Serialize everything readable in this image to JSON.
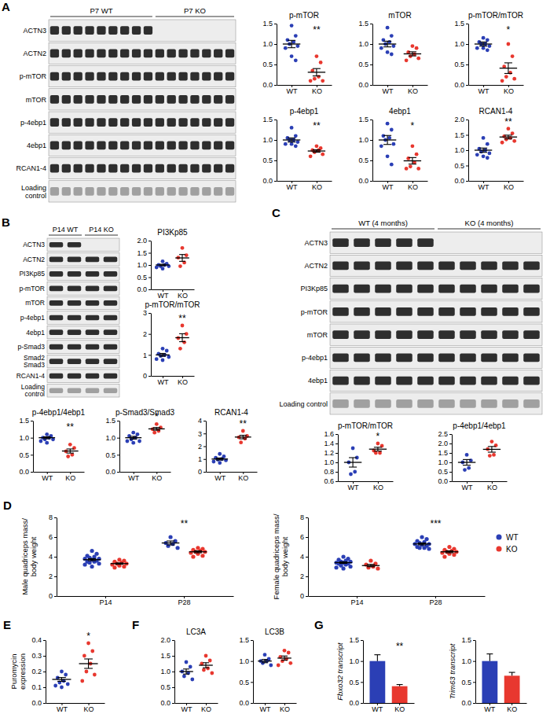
{
  "blots": [
    {
      "panel": "A",
      "headers": [
        "P7 WT",
        "P7 KO"
      ],
      "rows": [
        "ACTN3",
        "ACTN2",
        "p-mTOR",
        "mTOR",
        "p-4ebp1",
        "4ebp1",
        "RCAN1-4",
        [
          "Loading",
          "control"
        ]
      ]
    },
    {
      "panel": "B",
      "headers": [
        "P14 WT",
        "P14 KO"
      ],
      "rows": [
        "ACTN3",
        "ACTN2",
        "PI3Kp85",
        "p-mTOR",
        "mTOR",
        "p-4ebp1",
        "4ebp1",
        "p-Smad3",
        [
          "Smad2",
          "Smad3"
        ],
        "RCAN1-4",
        [
          "Loading",
          "control"
        ]
      ]
    },
    {
      "panel": "C",
      "headers": [
        "WT (4 months)",
        "KO (4 months)"
      ],
      "rows": [
        "ACTN3",
        "ACTN2",
        "PI3Kp85",
        "p-mTOR",
        "mTOR",
        "p-4ebp1",
        "4ebp1",
        "Loading control"
      ]
    }
  ],
  "chart_data": [
    {
      "type": "dot",
      "title": "p-mTOR",
      "categories": [
        "WT",
        "KO"
      ],
      "values": [
        [
          1.45,
          1.2,
          1.1,
          1.05,
          1.0,
          0.95,
          0.9,
          0.7,
          0.6
        ],
        [
          0.7,
          0.55,
          0.35,
          0.2,
          0.15,
          0.1,
          0.1
        ]
      ],
      "mean": [
        1.0,
        0.31
      ],
      "error": [
        0.09,
        0.09
      ],
      "colors": [
        "#2b3fb5",
        "#e8382f"
      ],
      "ylim": [
        0,
        1.5
      ],
      "yticks": [
        {
          "value": 0,
          "label": "0.0"
        },
        0.5,
        {
          "value": 1,
          "label": "1.0"
        },
        1.5
      ],
      "annotations": [
        {
          "text": "**",
          "x": "KO"
        }
      ]
    },
    {
      "type": "dot",
      "title": "mTOR",
      "categories": [
        "WT",
        "KO"
      ],
      "values": [
        [
          1.4,
          1.2,
          1.1,
          1.05,
          1.0,
          0.95,
          0.9,
          0.8,
          0.75
        ],
        [
          0.95,
          0.9,
          0.8,
          0.75,
          0.7,
          0.65,
          0.6
        ]
      ],
      "mean": [
        1.0,
        0.76
      ],
      "error": [
        0.07,
        0.05
      ],
      "colors": [
        "#2b3fb5",
        "#e8382f"
      ],
      "ylim": [
        0,
        1.5
      ],
      "yticks": [
        {
          "value": 0,
          "label": "0.0"
        },
        0.5,
        {
          "value": 1,
          "label": "1.0"
        },
        1.5
      ]
    },
    {
      "type": "dot",
      "title": "p-mTOR/mTOR",
      "categories": [
        "WT",
        "KO"
      ],
      "values": [
        [
          1.15,
          1.1,
          1.05,
          1.0,
          1.0,
          0.95,
          0.9,
          0.9,
          0.85
        ],
        [
          1.0,
          0.7,
          0.45,
          0.3,
          0.2,
          0.15,
          0.1
        ]
      ],
      "mean": [
        1.0,
        0.41
      ],
      "error": [
        0.05,
        0.13
      ],
      "colors": [
        "#2b3fb5",
        "#e8382f"
      ],
      "ylim": [
        0,
        1.5
      ],
      "yticks": [
        {
          "value": 0,
          "label": "0.0"
        },
        0.5,
        {
          "value": 1,
          "label": "1.0"
        },
        1.5
      ],
      "annotations": [
        {
          "text": "*",
          "x": "KO"
        }
      ]
    },
    {
      "type": "dot",
      "title": "p-4ebp1",
      "categories": [
        "WT",
        "KO"
      ],
      "values": [
        [
          1.3,
          1.1,
          1.05,
          1.0,
          1.0,
          0.95,
          0.9,
          0.9,
          0.85
        ],
        [
          0.85,
          0.8,
          0.75,
          0.75,
          0.7,
          0.65,
          0.6
        ]
      ],
      "mean": [
        1.0,
        0.73
      ],
      "error": [
        0.05,
        0.03
      ],
      "colors": [
        "#2b3fb5",
        "#e8382f"
      ],
      "ylim": [
        0,
        1.5
      ],
      "yticks": [
        {
          "value": 0,
          "label": "0.0"
        },
        0.5,
        {
          "value": 1,
          "label": "1.0"
        },
        1.5
      ],
      "annotations": [
        {
          "text": "**",
          "x": "KO"
        }
      ]
    },
    {
      "type": "dot",
      "title": "4ebp1",
      "categories": [
        "WT",
        "KO"
      ],
      "values": [
        [
          1.4,
          1.25,
          1.1,
          1.05,
          1.0,
          0.9,
          0.85,
          0.6,
          0.4
        ],
        [
          0.85,
          0.65,
          0.55,
          0.45,
          0.35,
          0.3,
          0.3
        ]
      ],
      "mean": [
        1.0,
        0.49
      ],
      "error": [
        0.11,
        0.08
      ],
      "colors": [
        "#2b3fb5",
        "#e8382f"
      ],
      "ylim": [
        0,
        1.5
      ],
      "yticks": [
        {
          "value": 0,
          "label": "0.0"
        },
        0.5,
        {
          "value": 1,
          "label": "1.0"
        },
        1.5
      ],
      "annotations": [
        {
          "text": "*",
          "x": "KO"
        }
      ]
    },
    {
      "type": "dot",
      "title": "RCAN1-4",
      "categories": [
        "WT",
        "KO"
      ],
      "values": [
        [
          1.4,
          1.2,
          1.05,
          1.0,
          0.95,
          0.9,
          0.85,
          0.8,
          0.75
        ],
        [
          1.7,
          1.55,
          1.45,
          1.4,
          1.35,
          1.3,
          1.25
        ]
      ],
      "mean": [
        1.0,
        1.43
      ],
      "error": [
        0.07,
        0.06
      ],
      "colors": [
        "#2b3fb5",
        "#e8382f"
      ],
      "ylim": [
        0,
        2
      ],
      "yticks": [
        {
          "value": 0,
          "label": "0.0"
        },
        0.5,
        {
          "value": 1,
          "label": "1.0"
        },
        1.5,
        {
          "value": 2,
          "label": "2.0"
        }
      ],
      "annotations": [
        {
          "text": "**",
          "x": "KO"
        }
      ]
    },
    {
      "type": "dot",
      "title": "PI3Kp85",
      "categories": [
        "WT",
        "KO"
      ],
      "values": [
        [
          1.15,
          1.05,
          1.0,
          1.0,
          0.95,
          0.95,
          0.9,
          0.85
        ],
        [
          1.7,
          1.4,
          1.3,
          1.1,
          0.95
        ]
      ],
      "mean": [
        1.0,
        1.29
      ],
      "error": [
        0.03,
        0.14
      ],
      "colors": [
        "#2b3fb5",
        "#e8382f"
      ],
      "ylim": [
        0,
        2
      ],
      "yticks": [
        {
          "value": 0,
          "label": "0.0"
        },
        0.5,
        {
          "value": 1,
          "label": "1.0"
        },
        1.5,
        {
          "value": 2,
          "label": "2.0"
        }
      ]
    },
    {
      "type": "dot",
      "title": "p-mTOR/mTOR",
      "categories": [
        "WT",
        "KO"
      ],
      "values": [
        [
          1.3,
          1.2,
          1.05,
          1.0,
          0.95,
          0.9,
          0.8,
          0.75
        ],
        [
          2.4,
          2.0,
          1.8,
          1.6,
          1.3
        ]
      ],
      "mean": [
        1.0,
        1.82
      ],
      "error": [
        0.07,
        0.19
      ],
      "colors": [
        "#2b3fb5",
        "#e8382f"
      ],
      "ylim": [
        0,
        3
      ],
      "yticks": [
        0,
        1,
        2,
        3
      ],
      "annotations": [
        {
          "text": "**",
          "x": "KO"
        }
      ]
    },
    {
      "type": "dot",
      "title": "p-4ebp1/4ebp1",
      "categories": [
        "WT",
        "KO"
      ],
      "values": [
        [
          1.1,
          1.05,
          1.0,
          1.0,
          0.95,
          0.95,
          0.9,
          0.85
        ],
        [
          0.8,
          0.7,
          0.6,
          0.5,
          0.45
        ]
      ],
      "mean": [
        1.0,
        0.61
      ],
      "error": [
        0.03,
        0.06
      ],
      "colors": [
        "#2b3fb5",
        "#e8382f"
      ],
      "ylim": [
        0,
        1.5
      ],
      "yticks": [
        {
          "value": 0,
          "label": "0.0"
        },
        0.5,
        {
          "value": 1,
          "label": "1.0"
        },
        1.5
      ],
      "annotations": [
        {
          "text": "**",
          "x": "KO"
        }
      ]
    },
    {
      "type": "dot",
      "title": "p-Smad3/Smad3",
      "categories": [
        "WT",
        "KO"
      ],
      "values": [
        [
          1.15,
          1.1,
          1.05,
          1.0,
          0.95,
          0.9,
          0.9,
          0.85
        ],
        [
          1.4,
          1.3,
          1.25,
          1.2,
          1.15
        ]
      ],
      "mean": [
        1.0,
        1.26
      ],
      "error": [
        0.04,
        0.04
      ],
      "colors": [
        "#2b3fb5",
        "#e8382f"
      ],
      "ylim": [
        0,
        1.5
      ],
      "yticks": [
        {
          "value": 0,
          "label": "0.0"
        },
        0.5,
        {
          "value": 1,
          "label": "1.0"
        },
        1.5
      ],
      "annotations": [
        {
          "text": "*",
          "x": "KO"
        }
      ]
    },
    {
      "type": "dot",
      "title": "RCAN1-4",
      "categories": [
        "WT",
        "KO"
      ],
      "values": [
        [
          1.4,
          1.2,
          1.1,
          1.0,
          0.95,
          0.9,
          0.8,
          0.7
        ],
        [
          3.2,
          2.8,
          2.7,
          2.6,
          2.3
        ]
      ],
      "mean": [
        1.0,
        2.72
      ],
      "error": [
        0.08,
        0.14
      ],
      "colors": [
        "#2b3fb5",
        "#e8382f"
      ],
      "ylim": [
        0,
        4
      ],
      "yticks": [
        0,
        1,
        2,
        3,
        4
      ],
      "annotations": [
        {
          "text": "**",
          "x": "KO"
        }
      ]
    },
    {
      "type": "dot",
      "title": "p-mTOR/mTOR",
      "categories": [
        "WT",
        "KO"
      ],
      "values": [
        [
          1.3,
          1.1,
          1.0,
          0.8,
          0.75
        ],
        [
          1.4,
          1.35,
          1.25,
          1.2,
          1.2
        ]
      ],
      "mean": [
        1.0,
        1.28
      ],
      "error": [
        0.1,
        0.04
      ],
      "colors": [
        "#2b3fb5",
        "#e8382f"
      ],
      "ylim": [
        0.6,
        1.6
      ],
      "yticks": [
        0.6,
        0.8,
        {
          "value": 1,
          "label": "1.0"
        },
        1.2,
        1.4,
        1.6
      ],
      "annotations": [
        {
          "text": "*",
          "x": "KO"
        }
      ]
    },
    {
      "type": "dot",
      "title": "p-4ebp1/4ebp1",
      "categories": [
        "WT",
        "KO"
      ],
      "values": [
        [
          1.4,
          1.1,
          1.0,
          0.7,
          0.6
        ],
        [
          2.1,
          1.9,
          1.7,
          1.4,
          1.35
        ]
      ],
      "mean": [
        1.0,
        1.69
      ],
      "error": [
        0.15,
        0.15
      ],
      "colors": [
        "#2b3fb5",
        "#e8382f"
      ],
      "ylim": [
        0,
        2.5
      ],
      "yticks": [
        {
          "value": 0,
          "label": "0.0"
        },
        0.5,
        {
          "value": 1,
          "label": "1.0"
        },
        1.5,
        {
          "value": 2,
          "label": "2.0"
        },
        2.5
      ]
    },
    {
      "type": "dot",
      "panel": "D",
      "ylabel": [
        "Male quadriceps mass/",
        "body weight"
      ],
      "categories": [
        "P14",
        "P28"
      ],
      "series": [
        {
          "name": "WT",
          "color": "#2b3fb5",
          "values": [
            [
              4.6,
              4.3,
              4.1,
              4.0,
              3.9,
              3.8,
              3.8,
              3.7,
              3.6,
              3.5,
              3.5,
              3.4,
              3.3,
              3.2,
              3.0
            ],
            [
              6.0,
              5.6,
              5.4,
              5.3,
              5.1,
              4.9
            ]
          ],
          "mean": [
            3.7,
            5.4
          ],
          "error": [
            0.1,
            0.2
          ]
        },
        {
          "name": "KO",
          "color": "#e8382f",
          "values": [
            [
              3.7,
              3.6,
              3.5,
              3.4,
              3.3,
              3.3,
              3.2,
              3.1,
              3.0,
              2.9
            ],
            [
              4.9,
              4.8,
              4.7,
              4.6,
              4.5,
              4.5,
              4.4,
              4.3,
              4.1,
              4.0
            ]
          ],
          "mean": [
            3.3,
            4.5
          ],
          "error": [
            0.07,
            0.1
          ]
        }
      ],
      "ylim": [
        0,
        8
      ],
      "yticks": [
        0,
        2,
        4,
        6,
        8
      ],
      "annotations": [
        {
          "text": "**",
          "x": "P28"
        }
      ]
    },
    {
      "type": "dot",
      "ylabel": [
        "Female quadriceps mass/",
        "body weight"
      ],
      "categories": [
        "P14",
        "P28"
      ],
      "series": [
        {
          "name": "WT",
          "color": "#2b3fb5",
          "values": [
            [
              4.0,
              3.8,
              3.7,
              3.6,
              3.5,
              3.5,
              3.4,
              3.4,
              3.3,
              3.3,
              3.2,
              3.1,
              3.0,
              2.9,
              2.8
            ],
            [
              6.0,
              5.8,
              5.6,
              5.5,
              5.4,
              5.3,
              5.3,
              5.2,
              5.1,
              5.0,
              4.9,
              4.9,
              4.8
            ]
          ],
          "mean": [
            3.4,
            5.3
          ],
          "error": [
            0.08,
            0.1
          ]
        },
        {
          "name": "KO",
          "color": "#e8382f",
          "values": [
            [
              3.6,
              3.3,
              3.2,
              3.0,
              2.9,
              2.8
            ],
            [
              5.0,
              4.8,
              4.7,
              4.6,
              4.5,
              4.5,
              4.4,
              4.3,
              4.2,
              4.0
            ]
          ],
          "mean": [
            3.1,
            4.5
          ],
          "error": [
            0.12,
            0.1
          ]
        }
      ],
      "ylim": [
        0,
        8
      ],
      "yticks": [
        0,
        2,
        4,
        6,
        8
      ],
      "legend": "right",
      "annotations": [
        {
          "text": "***",
          "x": "P28"
        }
      ]
    },
    {
      "type": "dot",
      "panel": "E",
      "ylabel": [
        "Puromycin",
        "expression"
      ],
      "categories": [
        "WT",
        "KO"
      ],
      "values": [
        [
          0.2,
          0.18,
          0.16,
          0.14,
          0.13,
          0.12,
          0.11,
          0.1
        ],
        [
          0.38,
          0.33,
          0.3,
          0.25,
          0.2,
          0.18,
          0.14
        ]
      ],
      "mean": [
        0.15,
        0.25
      ],
      "error": [
        0.012,
        0.03
      ],
      "colors": [
        "#2b3fb5",
        "#e8382f"
      ],
      "ylim": [
        0,
        0.4
      ],
      "yticks": [
        {
          "value": 0,
          "label": "0.0"
        },
        0.1,
        0.2,
        0.3,
        0.4
      ],
      "annotations": [
        {
          "text": "*",
          "x": "KO"
        }
      ]
    },
    {
      "type": "dot",
      "panel": "F",
      "title": "LC3A",
      "categories": [
        "WT",
        "KO"
      ],
      "values": [
        [
          1.3,
          1.15,
          1.0,
          0.95,
          0.85,
          0.75
        ],
        [
          1.5,
          1.35,
          1.25,
          1.1,
          1.05,
          0.95
        ]
      ],
      "mean": [
        1.0,
        1.2
      ],
      "error": [
        0.08,
        0.08
      ],
      "colors": [
        "#2b3fb5",
        "#e8382f"
      ],
      "ylim": [
        0,
        2
      ],
      "yticks": [
        {
          "value": 0,
          "label": "0.0"
        },
        0.5,
        {
          "value": 1,
          "label": "1.0"
        },
        1.5,
        {
          "value": 2,
          "label": "2.0"
        }
      ]
    },
    {
      "type": "dot",
      "title": "LC3B",
      "categories": [
        "WT",
        "KO"
      ],
      "values": [
        [
          1.15,
          1.05,
          1.0,
          1.0,
          0.95,
          0.9
        ],
        [
          1.25,
          1.2,
          1.1,
          1.05,
          1.0,
          0.95,
          0.9
        ]
      ],
      "mean": [
        1.0,
        1.07
      ],
      "error": [
        0.04,
        0.05
      ],
      "colors": [
        "#2b3fb5",
        "#e8382f"
      ],
      "ylim": [
        0,
        1.5
      ],
      "yticks": [
        {
          "value": 0,
          "label": "0.0"
        },
        0.5,
        {
          "value": 1,
          "label": "1.0"
        },
        1.5
      ]
    },
    {
      "type": "bar",
      "panel": "G",
      "ylabel": [
        "Fbxo32 transcript"
      ],
      "categories": [
        "WT",
        "KO"
      ],
      "values": [
        1.0,
        0.4
      ],
      "error": [
        0.15,
        0.04
      ],
      "colors": [
        "#2b3fb5",
        "#e8382f"
      ],
      "ylim": [
        0,
        1.5
      ],
      "yticks": [
        {
          "value": 0,
          "label": "0.0"
        },
        0.5,
        {
          "value": 1,
          "label": "1.0"
        },
        1.5
      ],
      "annotations": [
        {
          "text": "**",
          "x": "KO"
        }
      ]
    },
    {
      "type": "bar",
      "ylabel": [
        "Trim63 transcript"
      ],
      "categories": [
        "WT",
        "KO"
      ],
      "values": [
        1.0,
        0.65
      ],
      "error": [
        0.17,
        0.08
      ],
      "colors": [
        "#2b3fb5",
        "#e8382f"
      ],
      "ylim": [
        0,
        1.5
      ],
      "yticks": [
        {
          "value": 0,
          "label": "0.0"
        },
        0.5,
        {
          "value": 1,
          "label": "1.0"
        },
        1.5
      ]
    }
  ]
}
